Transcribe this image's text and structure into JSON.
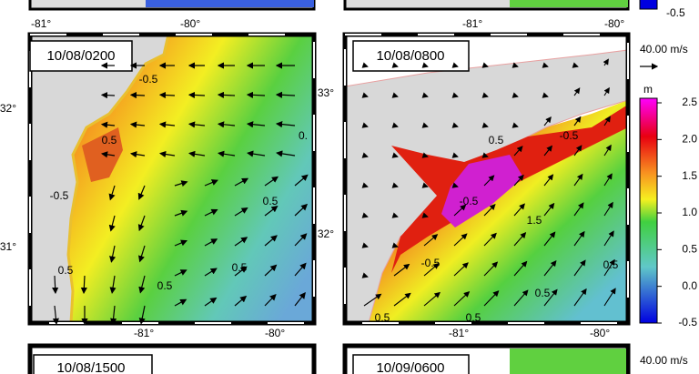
{
  "top_axis_labels": [
    "-81°",
    "-80°",
    "-81°",
    "-80°"
  ],
  "top_colorbar_label": "-0.5",
  "panels": [
    {
      "time": "10/08/0200",
      "lat_labels": [
        "32°",
        "31°"
      ],
      "contour_labels": [
        "-0.5",
        "0.5",
        "-0.5",
        "0.5",
        "0.",
        "0.5",
        "0.5",
        "0.5"
      ]
    },
    {
      "time": "10/08/0800",
      "lat_labels": [
        "33°",
        "32°"
      ],
      "contour_labels": [
        "0.5",
        "-0.5",
        "-0.5",
        "1.5",
        "-0.5",
        "0.5",
        "0.5",
        "0.5",
        "0.5"
      ]
    }
  ],
  "scale_label": "40.00 m/s",
  "colorbar": {
    "unit": "m",
    "ticks": [
      "2.5",
      "2.0",
      "1.5",
      "1.0",
      "0.5",
      "0.0",
      "-0.5"
    ]
  },
  "bottom_axis_labels": [
    "-81°",
    "-80°",
    "-81°",
    "-80°"
  ],
  "bottom_panels": [
    "10/08/1500",
    "10/09/0600"
  ],
  "bottom_scale_label": "40.00 m/s"
}
